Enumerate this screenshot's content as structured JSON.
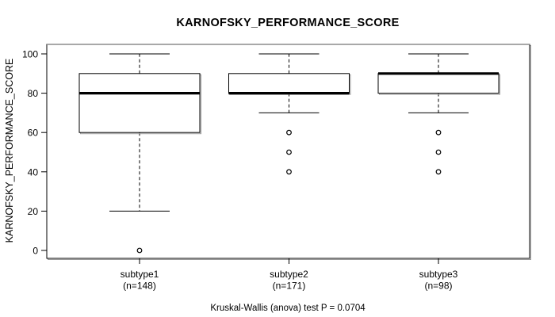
{
  "chart_data": {
    "type": "boxplot",
    "title": "KARNOFSKY_PERFORMANCE_SCORE",
    "ylabel": "KARNOFSKY_PERFORMANCE_SCORE",
    "xlabel": "",
    "annotation": "Kruskal-Wallis (anova) test P = 0.0704",
    "ylim": [
      0,
      100
    ],
    "yticks": [
      0,
      20,
      40,
      60,
      80,
      100
    ],
    "grid": false,
    "legend": false,
    "categories": [
      "subtype1",
      "subtype2",
      "subtype3"
    ],
    "series": [
      {
        "label": "subtype1",
        "sublabel": "(n=148)",
        "whisker_low": 20,
        "q1": 60,
        "median": 80,
        "q3": 90,
        "whisker_high": 100,
        "outliers": [
          0
        ]
      },
      {
        "label": "subtype2",
        "sublabel": "(n=171)",
        "whisker_low": 70,
        "q1": 80,
        "median": 80,
        "q3": 90,
        "whisker_high": 100,
        "outliers": [
          60,
          50,
          40
        ]
      },
      {
        "label": "subtype3",
        "sublabel": "(n=98)",
        "whisker_low": 70,
        "q1": 80,
        "median": 90,
        "q3": 90,
        "whisker_high": 100,
        "outliers": [
          60,
          50,
          40
        ]
      }
    ],
    "colors": {
      "stroke": "#000000",
      "box_fill": "#ffffff",
      "shadow": "#9a9a9a",
      "frame_top_edge": "#8c8c8c",
      "background": "#ffffff"
    }
  }
}
